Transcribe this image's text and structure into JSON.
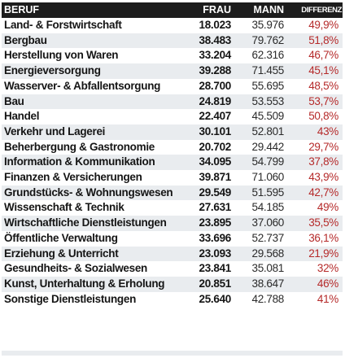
{
  "chart_data": {
    "type": "table",
    "columns": [
      "BERUF",
      "FRAU",
      "MANN",
      "DIFFERENZ"
    ],
    "rows": [
      {
        "beruf": "Land- & Forstwirtschaft",
        "frau": "18.023",
        "mann": "35.976",
        "diff": "49,9%"
      },
      {
        "beruf": "Bergbau",
        "frau": "38.483",
        "mann": "79.762",
        "diff": "51,8%"
      },
      {
        "beruf": "Herstellung von Waren",
        "frau": "33.204",
        "mann": "62.316",
        "diff": "46,7%"
      },
      {
        "beruf": "Energieversorgung",
        "frau": "39.288",
        "mann": "71.455",
        "diff": "45,1%"
      },
      {
        "beruf": "Wasserver- & Abfallentsorgung",
        "frau": "28.700",
        "mann": "55.695",
        "diff": "48,5%"
      },
      {
        "beruf": "Bau",
        "frau": "24.819",
        "mann": "53.553",
        "diff": "53,7%"
      },
      {
        "beruf": "Handel",
        "frau": "22.407",
        "mann": "45.509",
        "diff": "50,8%"
      },
      {
        "beruf": "Verkehr und Lagerei",
        "frau": "30.101",
        "mann": "52.801",
        "diff": "43%"
      },
      {
        "beruf": "Beherbergung & Gastronomie",
        "frau": "20.702",
        "mann": "29.442",
        "diff": "29,7%"
      },
      {
        "beruf": "Information & Kommunikation",
        "frau": "34.095",
        "mann": "54.799",
        "diff": "37,8%"
      },
      {
        "beruf": "Finanzen & Versicherungen",
        "frau": "39.871",
        "mann": "71.060",
        "diff": "43,9%"
      },
      {
        "beruf": "Grundstücks- & Wohnungswesen",
        "frau": "29.549",
        "mann": "51.595",
        "diff": "42,7%"
      },
      {
        "beruf": "Wissenschaft & Technik",
        "frau": "27.631",
        "mann": "54.185",
        "diff": "49%"
      },
      {
        "beruf": "Wirtschaftliche Dienstleistungen",
        "frau": "23.895",
        "mann": "37.060",
        "diff": "35,5%"
      },
      {
        "beruf": "Öffentliche Verwaltung",
        "frau": "33.696",
        "mann": "52.737",
        "diff": "36,1%"
      },
      {
        "beruf": "Erziehung & Unterricht",
        "frau": "23.093",
        "mann": "29.568",
        "diff": "21,9%"
      },
      {
        "beruf": "Gesundheits- & Sozialwesen",
        "frau": "23.841",
        "mann": "35.081",
        "diff": "32%"
      },
      {
        "beruf": "Kunst, Unterhaltung & Erholung",
        "frau": "20.851",
        "mann": "38.647",
        "diff": "46%"
      },
      {
        "beruf": "Sonstige Dienstleistungen",
        "frau": "25.640",
        "mann": "42.788",
        "diff": "41%"
      }
    ]
  },
  "colors": {
    "header_bg": "#1d1d1d",
    "header_text": "#ffffff",
    "row_alt_bg": "#e9ecef",
    "text": "#151515",
    "diff_text": "#b52a2a"
  }
}
